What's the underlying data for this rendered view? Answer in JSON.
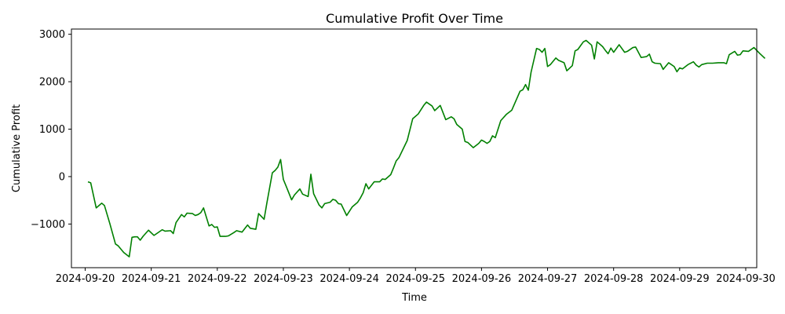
{
  "chart_data": {
    "type": "line",
    "title": "Cumulative Profit Over Time",
    "xlabel": "Time",
    "ylabel": "Cumulative Profit",
    "xlim": [
      "2024-09-19 19:00",
      "2024-09-30 04:00"
    ],
    "ylim": [
      -1920,
      3110
    ],
    "grid": false,
    "legend": "none",
    "x_ticks": [
      "2024-09-20",
      "2024-09-21",
      "2024-09-22",
      "2024-09-23",
      "2024-09-24",
      "2024-09-25",
      "2024-09-26",
      "2024-09-27",
      "2024-09-28",
      "2024-09-29",
      "2024-09-30"
    ],
    "x_tick_labels": [
      "2024-09-20",
      "2024-09-21",
      "2024-09-22",
      "2024-09-23",
      "2024-09-24",
      "2024-09-25",
      "2024-09-26",
      "2024-09-27",
      "2024-09-28",
      "2024-09-29",
      "2024-09-30"
    ],
    "y_ticks": [
      -1000,
      0,
      1000,
      2000,
      3000
    ],
    "y_tick_labels": [
      "−1000",
      "0",
      "1000",
      "2000",
      "3000"
    ],
    "series": [
      {
        "color": "#008000",
        "points": [
          [
            "2024-09-20 01:00",
            -110
          ],
          [
            "2024-09-20 02:00",
            -130
          ],
          [
            "2024-09-20 04:00",
            -660
          ],
          [
            "2024-09-20 06:00",
            -560
          ],
          [
            "2024-09-20 07:00",
            -610
          ],
          [
            "2024-09-20 09:00",
            -1000
          ],
          [
            "2024-09-20 11:00",
            -1420
          ],
          [
            "2024-09-20 12:00",
            -1460
          ],
          [
            "2024-09-20 14:00",
            -1600
          ],
          [
            "2024-09-20 16:00",
            -1690
          ],
          [
            "2024-09-20 17:00",
            -1280
          ],
          [
            "2024-09-20 18:00",
            -1270
          ],
          [
            "2024-09-20 19:00",
            -1270
          ],
          [
            "2024-09-20 20:00",
            -1340
          ],
          [
            "2024-09-20 21:00",
            -1260
          ],
          [
            "2024-09-20 23:00",
            -1130
          ],
          [
            "2024-09-21 01:00",
            -1240
          ],
          [
            "2024-09-21 02:00",
            -1200
          ],
          [
            "2024-09-21 04:00",
            -1120
          ],
          [
            "2024-09-21 05:00",
            -1150
          ],
          [
            "2024-09-21 07:00",
            -1140
          ],
          [
            "2024-09-21 08:00",
            -1200
          ],
          [
            "2024-09-21 09:00",
            -970
          ],
          [
            "2024-09-21 11:00",
            -800
          ],
          [
            "2024-09-21 12:00",
            -850
          ],
          [
            "2024-09-21 13:00",
            -770
          ],
          [
            "2024-09-21 15:00",
            -780
          ],
          [
            "2024-09-21 16:00",
            -820
          ],
          [
            "2024-09-21 17:00",
            -800
          ],
          [
            "2024-09-21 18:00",
            -760
          ],
          [
            "2024-09-21 19:00",
            -660
          ],
          [
            "2024-09-21 21:00",
            -1040
          ],
          [
            "2024-09-21 22:00",
            -1010
          ],
          [
            "2024-09-21 23:00",
            -1070
          ],
          [
            "2024-09-22 00:00",
            -1060
          ],
          [
            "2024-09-22 01:00",
            -1260
          ],
          [
            "2024-09-22 03:00",
            -1260
          ],
          [
            "2024-09-22 04:00",
            -1250
          ],
          [
            "2024-09-22 06:00",
            -1180
          ],
          [
            "2024-09-22 07:00",
            -1140
          ],
          [
            "2024-09-22 09:00",
            -1170
          ],
          [
            "2024-09-22 11:00",
            -1020
          ],
          [
            "2024-09-22 12:00",
            -1090
          ],
          [
            "2024-09-22 14:00",
            -1110
          ],
          [
            "2024-09-22 15:00",
            -780
          ],
          [
            "2024-09-22 17:00",
            -900
          ],
          [
            "2024-09-22 18:00",
            -560
          ],
          [
            "2024-09-22 20:00",
            80
          ],
          [
            "2024-09-22 21:00",
            130
          ],
          [
            "2024-09-22 22:00",
            200
          ],
          [
            "2024-09-22 23:00",
            360
          ],
          [
            "2024-09-23 00:00",
            -60
          ],
          [
            "2024-09-23 01:00",
            -200
          ],
          [
            "2024-09-23 03:00",
            -490
          ],
          [
            "2024-09-23 04:00",
            -390
          ],
          [
            "2024-09-23 06:00",
            -260
          ],
          [
            "2024-09-23 07:00",
            -370
          ],
          [
            "2024-09-23 09:00",
            -420
          ],
          [
            "2024-09-23 10:00",
            50
          ],
          [
            "2024-09-23 11:00",
            -360
          ],
          [
            "2024-09-23 13:00",
            -600
          ],
          [
            "2024-09-23 14:00",
            -660
          ],
          [
            "2024-09-23 15:00",
            -570
          ],
          [
            "2024-09-23 17:00",
            -540
          ],
          [
            "2024-09-23 18:00",
            -480
          ],
          [
            "2024-09-23 19:00",
            -500
          ],
          [
            "2024-09-23 20:00",
            -570
          ],
          [
            "2024-09-23 21:00",
            -580
          ],
          [
            "2024-09-23 23:00",
            -820
          ],
          [
            "2024-09-24 01:00",
            -640
          ],
          [
            "2024-09-24 03:00",
            -540
          ],
          [
            "2024-09-24 04:00",
            -450
          ],
          [
            "2024-09-24 05:00",
            -340
          ],
          [
            "2024-09-24 06:00",
            -150
          ],
          [
            "2024-09-24 07:00",
            -260
          ],
          [
            "2024-09-24 09:00",
            -110
          ],
          [
            "2024-09-24 11:00",
            -110
          ],
          [
            "2024-09-24 12:00",
            -50
          ],
          [
            "2024-09-24 13:00",
            -60
          ],
          [
            "2024-09-24 15:00",
            40
          ],
          [
            "2024-09-24 16:00",
            180
          ],
          [
            "2024-09-24 17:00",
            330
          ],
          [
            "2024-09-24 18:00",
            400
          ],
          [
            "2024-09-24 20:00",
            640
          ],
          [
            "2024-09-24 21:00",
            760
          ],
          [
            "2024-09-24 23:00",
            1220
          ],
          [
            "2024-09-25 01:00",
            1320
          ],
          [
            "2024-09-25 03:00",
            1500
          ],
          [
            "2024-09-25 04:00",
            1570
          ],
          [
            "2024-09-25 06:00",
            1490
          ],
          [
            "2024-09-25 07:00",
            1390
          ],
          [
            "2024-09-25 09:00",
            1500
          ],
          [
            "2024-09-25 11:00",
            1200
          ],
          [
            "2024-09-25 13:00",
            1260
          ],
          [
            "2024-09-25 14:00",
            1220
          ],
          [
            "2024-09-25 15:00",
            1100
          ],
          [
            "2024-09-25 17:00",
            1000
          ],
          [
            "2024-09-25 18:00",
            740
          ],
          [
            "2024-09-25 19:00",
            720
          ],
          [
            "2024-09-25 21:00",
            610
          ],
          [
            "2024-09-25 23:00",
            700
          ],
          [
            "2024-09-26 00:00",
            770
          ],
          [
            "2024-09-26 01:00",
            740
          ],
          [
            "2024-09-26 02:00",
            700
          ],
          [
            "2024-09-26 03:00",
            740
          ],
          [
            "2024-09-26 04:00",
            860
          ],
          [
            "2024-09-26 05:00",
            820
          ],
          [
            "2024-09-26 07:00",
            1180
          ],
          [
            "2024-09-26 09:00",
            1310
          ],
          [
            "2024-09-26 11:00",
            1400
          ],
          [
            "2024-09-26 14:00",
            1800
          ],
          [
            "2024-09-26 15:00",
            1830
          ],
          [
            "2024-09-26 16:00",
            1940
          ],
          [
            "2024-09-26 17:00",
            1820
          ],
          [
            "2024-09-26 18:00",
            2200
          ],
          [
            "2024-09-26 20:00",
            2700
          ],
          [
            "2024-09-26 21:00",
            2680
          ],
          [
            "2024-09-26 22:00",
            2620
          ],
          [
            "2024-09-26 23:00",
            2700
          ],
          [
            "2024-09-27 00:00",
            2320
          ],
          [
            "2024-09-27 01:00",
            2360
          ],
          [
            "2024-09-27 03:00",
            2500
          ],
          [
            "2024-09-27 04:00",
            2450
          ],
          [
            "2024-09-27 06:00",
            2400
          ],
          [
            "2024-09-27 07:00",
            2230
          ],
          [
            "2024-09-27 09:00",
            2340
          ],
          [
            "2024-09-27 10:00",
            2650
          ],
          [
            "2024-09-27 11:00",
            2680
          ],
          [
            "2024-09-27 12:00",
            2760
          ],
          [
            "2024-09-27 13:00",
            2840
          ],
          [
            "2024-09-27 14:00",
            2870
          ],
          [
            "2024-09-27 16:00",
            2770
          ],
          [
            "2024-09-27 17:00",
            2480
          ],
          [
            "2024-09-27 18:00",
            2840
          ],
          [
            "2024-09-27 20:00",
            2740
          ],
          [
            "2024-09-27 21:00",
            2660
          ],
          [
            "2024-09-27 22:00",
            2590
          ],
          [
            "2024-09-27 23:00",
            2710
          ],
          [
            "2024-09-28 00:00",
            2620
          ],
          [
            "2024-09-28 02:00",
            2780
          ],
          [
            "2024-09-28 04:00",
            2620
          ],
          [
            "2024-09-28 05:00",
            2640
          ],
          [
            "2024-09-28 07:00",
            2720
          ],
          [
            "2024-09-28 08:00",
            2730
          ],
          [
            "2024-09-28 10:00",
            2510
          ],
          [
            "2024-09-28 12:00",
            2530
          ],
          [
            "2024-09-28 13:00",
            2580
          ],
          [
            "2024-09-28 14:00",
            2420
          ],
          [
            "2024-09-28 15:00",
            2390
          ],
          [
            "2024-09-28 17:00",
            2380
          ],
          [
            "2024-09-28 18:00",
            2260
          ],
          [
            "2024-09-28 20:00",
            2400
          ],
          [
            "2024-09-28 22:00",
            2320
          ],
          [
            "2024-09-28 23:00",
            2210
          ],
          [
            "2024-09-29 00:00",
            2290
          ],
          [
            "2024-09-29 01:00",
            2270
          ],
          [
            "2024-09-29 03:00",
            2360
          ],
          [
            "2024-09-29 05:00",
            2420
          ],
          [
            "2024-09-29 06:00",
            2350
          ],
          [
            "2024-09-29 07:00",
            2310
          ],
          [
            "2024-09-29 08:00",
            2360
          ],
          [
            "2024-09-29 10:00",
            2390
          ],
          [
            "2024-09-29 12:00",
            2390
          ],
          [
            "2024-09-29 14:00",
            2400
          ],
          [
            "2024-09-29 16:00",
            2400
          ],
          [
            "2024-09-29 17:00",
            2380
          ],
          [
            "2024-09-29 18:00",
            2570
          ],
          [
            "2024-09-29 20:00",
            2640
          ],
          [
            "2024-09-29 21:00",
            2560
          ],
          [
            "2024-09-29 22:00",
            2570
          ],
          [
            "2024-09-29 23:00",
            2650
          ],
          [
            "2024-09-30 01:00",
            2640
          ],
          [
            "2024-09-30 03:00",
            2720
          ],
          [
            "2024-09-30 05:00",
            2600
          ],
          [
            "2024-09-30 07:00",
            2490
          ]
        ]
      }
    ]
  }
}
